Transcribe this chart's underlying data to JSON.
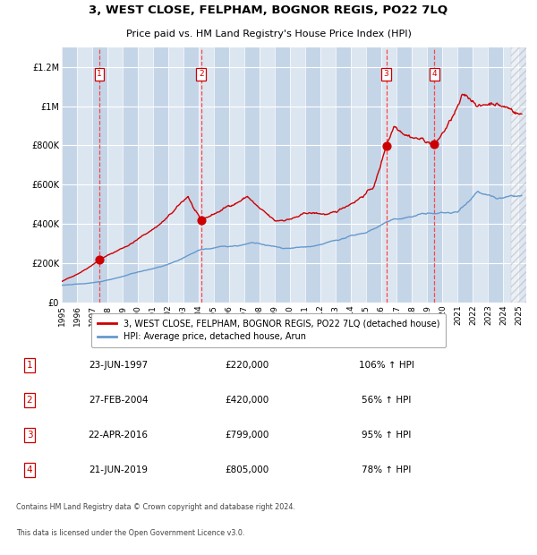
{
  "title": "3, WEST CLOSE, FELPHAM, BOGNOR REGIS, PO22 7LQ",
  "subtitle": "Price paid vs. HM Land Registry's House Price Index (HPI)",
  "footer_line1": "Contains HM Land Registry data © Crown copyright and database right 2024.",
  "footer_line2": "This data is licensed under the Open Government Licence v3.0.",
  "legend_label_red": "3, WEST CLOSE, FELPHAM, BOGNOR REGIS, PO22 7LQ (detached house)",
  "legend_label_blue": "HPI: Average price, detached house, Arun",
  "transactions": [
    {
      "num": 1,
      "date": "23-JUN-1997",
      "price": 220000,
      "pct": "106%",
      "dir": "↑"
    },
    {
      "num": 2,
      "date": "27-FEB-2004",
      "price": 420000,
      "pct": "56%",
      "dir": "↑"
    },
    {
      "num": 3,
      "date": "22-APR-2016",
      "price": 799000,
      "pct": "95%",
      "dir": "↑"
    },
    {
      "num": 4,
      "date": "21-JUN-2019",
      "price": 805000,
      "pct": "78%",
      "dir": "↑"
    }
  ],
  "transaction_years": [
    1997.47,
    2004.15,
    2016.31,
    2019.47
  ],
  "red_line_color": "#cc0000",
  "blue_line_color": "#6699cc",
  "bg_color": "#ffffff",
  "plot_bg_color": "#dce6f1",
  "stripe_color": "#c5d5e8",
  "grid_color": "#ffffff",
  "dashed_color": "#ff4444",
  "ylim": [
    0,
    1300000
  ],
  "yticks": [
    0,
    200000,
    400000,
    600000,
    800000,
    1000000,
    1200000
  ],
  "ytick_labels": [
    "£0",
    "£200K",
    "£400K",
    "£600K",
    "£800K",
    "£1M",
    "£1.2M"
  ],
  "xlim_start": 1995.0,
  "xlim_end": 2025.5,
  "fig_width": 6.0,
  "fig_height": 6.2,
  "dpi": 100
}
